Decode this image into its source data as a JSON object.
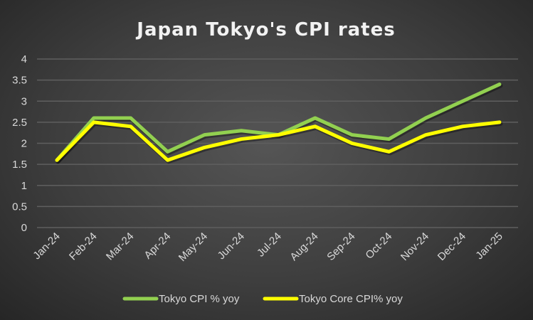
{
  "chart_data": {
    "type": "line",
    "title": "Japan Tokyo's CPI rates",
    "xlabel": "",
    "ylabel": "",
    "categories": [
      "Jan-24",
      "Feb-24",
      "Mar-24",
      "Apr-24",
      "May-24",
      "Jun-24",
      "Jul-24",
      "Aug-24",
      "Sep-24",
      "Oct-24",
      "Nov-24",
      "Dec-24",
      "Jan-25"
    ],
    "ylim": [
      0,
      4
    ],
    "yticks": [
      "0",
      "0.5",
      "1",
      "1.5",
      "2",
      "2.5",
      "3",
      "3.5",
      "4"
    ],
    "grid": true,
    "legend_position": "bottom",
    "series": [
      {
        "name": "Tokyo CPI % yoy",
        "color": "#92d050",
        "values": [
          1.6,
          2.6,
          2.6,
          1.8,
          2.2,
          2.3,
          2.2,
          2.6,
          2.2,
          2.1,
          2.6,
          3.0,
          3.4
        ]
      },
      {
        "name": "Tokyo Core CPI% yoy",
        "color": "#ffff00",
        "values": [
          1.6,
          2.5,
          2.4,
          1.6,
          1.9,
          2.1,
          2.2,
          2.4,
          2.0,
          1.8,
          2.2,
          2.4,
          2.5
        ]
      }
    ]
  }
}
